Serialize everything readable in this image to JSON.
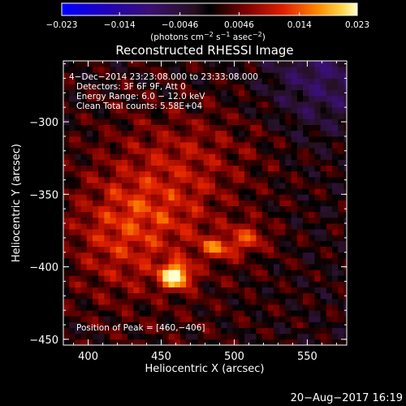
{
  "chart_data": {
    "type": "heatmap",
    "title": "Reconstructed RHESSI Image",
    "xlabel": "Heliocentric X (arcsec)",
    "ylabel": "Heliocentric Y (arcsec)",
    "xlim": [
      383,
      577
    ],
    "ylim": [
      -454,
      -258
    ],
    "x_ticks": [
      {
        "value": 400,
        "label": "400"
      },
      {
        "value": 450,
        "label": "450"
      },
      {
        "value": 500,
        "label": "500"
      },
      {
        "value": 550,
        "label": "550"
      }
    ],
    "y_ticks": [
      {
        "value": -300,
        "label": "−300"
      },
      {
        "value": -350,
        "label": "−350"
      },
      {
        "value": -400,
        "label": "−400"
      },
      {
        "value": -450,
        "label": "−450"
      }
    ],
    "colorbar": {
      "range": [
        -0.023,
        0.023
      ],
      "ticks": [
        {
          "value": -0.023,
          "label": "−0.023"
        },
        {
          "value": -0.014,
          "label": "−0.014"
        },
        {
          "value": -0.0046,
          "label": "−0.0046"
        },
        {
          "value": 0.0046,
          "label": "0.0046"
        },
        {
          "value": 0.014,
          "label": "0.014"
        },
        {
          "value": 0.023,
          "label": "0.023"
        }
      ],
      "unit_main": "(photons cm",
      "unit_sup1": "−2",
      "unit_mid1": " s",
      "unit_sup2": "−1",
      "unit_mid2": " asec",
      "unit_sup3": "−2",
      "unit_end": ")"
    },
    "annotations": [
      "4−Dec−2014 23:23:08.000 to 23:33:08.000",
      "Detectors: 3F 6F 9F, Att 0",
      "Energy Range: 6.0 − 12.0 keV",
      "Clean     Total counts: 5.58E+04"
    ],
    "peak_label": "Position of Peak = [460,−406]",
    "peak": {
      "x": 460,
      "y": -406,
      "value": 0.023
    },
    "sources": [
      {
        "x": 460,
        "y": -406,
        "sx": 7,
        "sy": 6,
        "value": 0.023
      },
      {
        "x": 488,
        "y": -387,
        "sx": 9,
        "sy": 5,
        "value": 0.011
      },
      {
        "x": 510,
        "y": -380,
        "sx": 9,
        "sy": 7,
        "value": 0.009
      },
      {
        "x": 445,
        "y": -360,
        "sx": 30,
        "sy": 22,
        "value": 0.006
      },
      {
        "x": 420,
        "y": -385,
        "sx": 22,
        "sy": 26,
        "value": 0.005
      },
      {
        "x": 470,
        "y": -320,
        "sx": 35,
        "sy": 20,
        "value": 0.004
      }
    ],
    "footer_date": "20−Aug−2017 16:19"
  }
}
